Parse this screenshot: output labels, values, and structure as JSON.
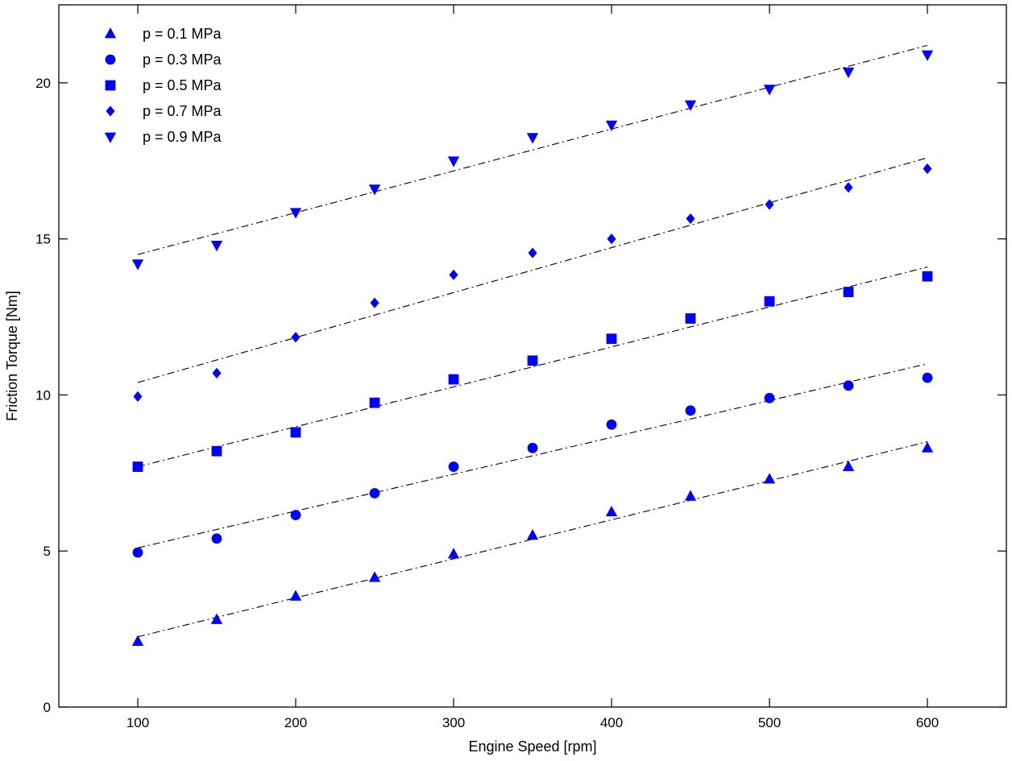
{
  "chart_data": {
    "type": "scatter",
    "title": "",
    "xlabel": "Engine Speed [rpm]",
    "ylabel": "Friction Torque [Nm]",
    "xlim": [
      50,
      650
    ],
    "ylim": [
      0,
      22.5
    ],
    "xticks": [
      100,
      200,
      300,
      400,
      500,
      600
    ],
    "yticks": [
      0,
      5,
      10,
      15,
      20
    ],
    "grid": false,
    "legend_position": "top-left",
    "marker_color": "#0000ff",
    "fit_line_color": "#000000",
    "fit_line_style": "dash-dot",
    "x": [
      100,
      150,
      200,
      250,
      300,
      350,
      400,
      450,
      500,
      550,
      600
    ],
    "series": [
      {
        "name": "p = 0.1 MPa",
        "marker": "triangle-up",
        "values": [
          2.1,
          2.8,
          3.55,
          4.15,
          4.9,
          5.5,
          6.25,
          6.75,
          7.3,
          7.7,
          8.3
        ],
        "fit": [
          2.25,
          8.5
        ]
      },
      {
        "name": "p = 0.3 MPa",
        "marker": "circle",
        "values": [
          4.95,
          5.4,
          6.15,
          6.85,
          7.7,
          8.3,
          9.05,
          9.5,
          9.9,
          10.3,
          10.55
        ],
        "fit": [
          5.1,
          11.0
        ]
      },
      {
        "name": "p = 0.5 MPa",
        "marker": "square",
        "values": [
          7.7,
          8.2,
          8.8,
          9.75,
          10.5,
          11.1,
          11.8,
          12.45,
          13.0,
          13.3,
          13.8
        ],
        "fit": [
          7.7,
          14.1
        ]
      },
      {
        "name": "p = 0.7 MPa",
        "marker": "diamond",
        "values": [
          9.95,
          10.7,
          11.85,
          12.95,
          13.85,
          14.55,
          15.0,
          15.65,
          16.1,
          16.65,
          17.25
        ],
        "fit": [
          10.4,
          17.6
        ]
      },
      {
        "name": "p = 0.9 MPa",
        "marker": "triangle-down",
        "values": [
          14.2,
          14.8,
          15.85,
          16.6,
          17.5,
          18.25,
          18.65,
          19.3,
          19.8,
          20.35,
          20.9
        ],
        "fit": [
          14.5,
          21.2
        ]
      }
    ]
  }
}
